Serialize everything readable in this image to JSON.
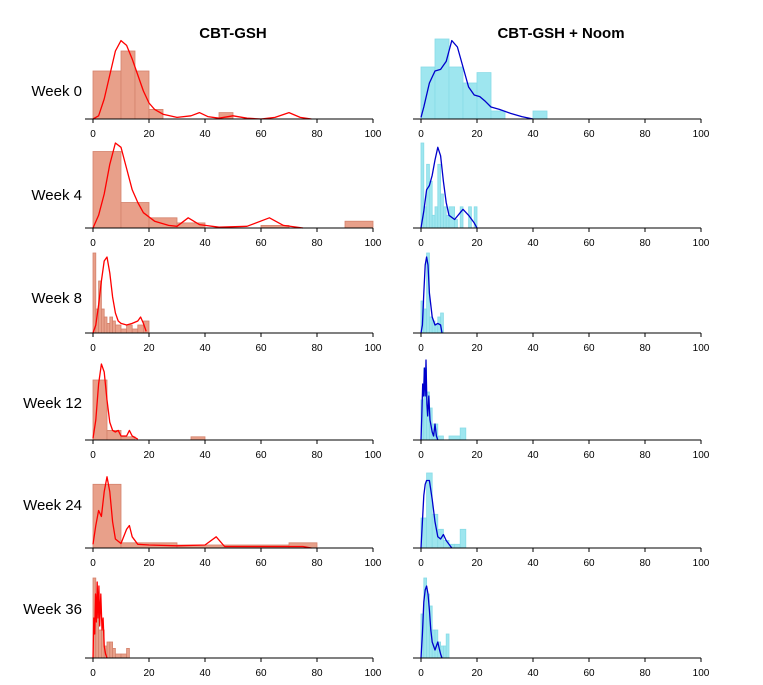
{
  "column_titles": [
    "CBT-GSH",
    "CBT-GSH + Noom"
  ],
  "row_labels": [
    "Week 0",
    "Week 4",
    "Week 8",
    "Week 12",
    "Week 24",
    "Week 36"
  ],
  "colors": {
    "left_bar_fill": "#e8a08a",
    "left_bar_stroke": "#d4826c",
    "left_line": "#ff0000",
    "right_bar_fill": "#9ee6ef",
    "right_bar_stroke": "#88dbe6",
    "right_line": "#0000cc"
  },
  "chart_data": [
    {
      "type": "bar",
      "group": "CBT-GSH",
      "row": "Week 0",
      "xlim": [
        0,
        100
      ],
      "histogram": [
        [
          0,
          10,
          0.6
        ],
        [
          10,
          15,
          0.85
        ],
        [
          15,
          20,
          0.6
        ],
        [
          20,
          25,
          0.12
        ],
        [
          45,
          50,
          0.08
        ]
      ],
      "density": [
        [
          0,
          0.0
        ],
        [
          2,
          0.04
        ],
        [
          4,
          0.25
        ],
        [
          6,
          0.55
        ],
        [
          8,
          0.85
        ],
        [
          10,
          0.98
        ],
        [
          12,
          0.92
        ],
        [
          14,
          0.75
        ],
        [
          16,
          0.55
        ],
        [
          18,
          0.35
        ],
        [
          20,
          0.2
        ],
        [
          22,
          0.12
        ],
        [
          25,
          0.06
        ],
        [
          30,
          0.02
        ],
        [
          35,
          0.04
        ],
        [
          38,
          0.08
        ],
        [
          41,
          0.03
        ],
        [
          45,
          0.01
        ],
        [
          50,
          0.04
        ],
        [
          55,
          0.01
        ],
        [
          60,
          0.0
        ],
        [
          65,
          0.02
        ],
        [
          70,
          0.08
        ],
        [
          74,
          0.02
        ],
        [
          78,
          0.0
        ]
      ]
    },
    {
      "type": "bar",
      "group": "CBT-GSH + Noom",
      "row": "Week 0",
      "xlim": [
        0,
        100
      ],
      "histogram": [
        [
          0,
          5,
          0.65
        ],
        [
          5,
          10,
          1.0
        ],
        [
          10,
          15,
          0.65
        ],
        [
          15,
          20,
          0.45
        ],
        [
          20,
          25,
          0.58
        ],
        [
          25,
          30,
          0.1
        ],
        [
          40,
          45,
          0.1
        ]
      ],
      "density": [
        [
          0,
          0.02
        ],
        [
          1,
          0.15
        ],
        [
          3,
          0.45
        ],
        [
          5,
          0.6
        ],
        [
          7,
          0.62
        ],
        [
          9,
          0.72
        ],
        [
          11,
          0.98
        ],
        [
          13,
          0.9
        ],
        [
          15,
          0.65
        ],
        [
          17,
          0.4
        ],
        [
          19,
          0.3
        ],
        [
          21,
          0.28
        ],
        [
          23,
          0.22
        ],
        [
          25,
          0.15
        ],
        [
          28,
          0.12
        ],
        [
          32,
          0.07
        ],
        [
          36,
          0.03
        ],
        [
          40,
          0.0
        ]
      ]
    },
    {
      "type": "bar",
      "group": "CBT-GSH",
      "row": "Week 4",
      "xlim": [
        0,
        100
      ],
      "histogram": [
        [
          0,
          10,
          0.9
        ],
        [
          10,
          20,
          0.3
        ],
        [
          20,
          30,
          0.12
        ],
        [
          30,
          40,
          0.06
        ],
        [
          60,
          70,
          0.03
        ],
        [
          90,
          100,
          0.08
        ]
      ],
      "density": [
        [
          0,
          0.0
        ],
        [
          2,
          0.15
        ],
        [
          4,
          0.4
        ],
        [
          6,
          0.75
        ],
        [
          8,
          1.0
        ],
        [
          10,
          0.95
        ],
        [
          12,
          0.7
        ],
        [
          14,
          0.45
        ],
        [
          16,
          0.3
        ],
        [
          18,
          0.18
        ],
        [
          22,
          0.08
        ],
        [
          27,
          0.03
        ],
        [
          30,
          0.02
        ],
        [
          34,
          0.12
        ],
        [
          38,
          0.04
        ],
        [
          45,
          0.01
        ],
        [
          55,
          0.02
        ],
        [
          63,
          0.12
        ],
        [
          68,
          0.03
        ],
        [
          75,
          0.0
        ]
      ]
    },
    {
      "type": "bar",
      "group": "CBT-GSH + Noom",
      "row": "Week 4",
      "xlim": [
        0,
        100
      ],
      "histogram": [
        [
          0,
          1,
          1.0
        ],
        [
          1,
          2,
          0.25
        ],
        [
          2,
          3,
          0.75
        ],
        [
          3,
          4,
          0.55
        ],
        [
          4,
          5,
          0.15
        ],
        [
          5,
          6,
          0.25
        ],
        [
          6,
          7,
          0.75
        ],
        [
          7,
          8,
          0.4
        ],
        [
          8,
          9,
          0.25
        ],
        [
          9,
          10,
          0.15
        ],
        [
          10,
          12,
          0.25
        ],
        [
          12,
          13,
          0.1
        ],
        [
          14,
          15,
          0.25
        ],
        [
          17,
          18,
          0.25
        ],
        [
          19,
          20,
          0.25
        ]
      ],
      "density": [
        [
          0,
          0.0
        ],
        [
          1,
          0.2
        ],
        [
          2,
          0.45
        ],
        [
          3,
          0.5
        ],
        [
          4,
          0.62
        ],
        [
          5,
          0.8
        ],
        [
          6,
          0.95
        ],
        [
          7,
          0.85
        ],
        [
          8,
          0.55
        ],
        [
          9,
          0.3
        ],
        [
          10,
          0.15
        ],
        [
          12,
          0.1
        ],
        [
          14,
          0.18
        ],
        [
          15,
          0.22
        ],
        [
          17,
          0.15
        ],
        [
          19,
          0.06
        ],
        [
          20,
          0.0
        ]
      ]
    },
    {
      "type": "bar",
      "group": "CBT-GSH",
      "row": "Week 8",
      "xlim": [
        0,
        100
      ],
      "histogram": [
        [
          0,
          1,
          1.0
        ],
        [
          1,
          2,
          0.3
        ],
        [
          2,
          3,
          0.65
        ],
        [
          3,
          4,
          0.3
        ],
        [
          4,
          5,
          0.2
        ],
        [
          5,
          6,
          0.12
        ],
        [
          6,
          7,
          0.2
        ],
        [
          7,
          8,
          0.15
        ],
        [
          8,
          10,
          0.1
        ],
        [
          10,
          12,
          0.05
        ],
        [
          12,
          14,
          0.1
        ],
        [
          14,
          16,
          0.05
        ],
        [
          16,
          18,
          0.1
        ],
        [
          18,
          20,
          0.15
        ]
      ],
      "density": [
        [
          0,
          0.0
        ],
        [
          1,
          0.1
        ],
        [
          2,
          0.35
        ],
        [
          3,
          0.65
        ],
        [
          4,
          0.9
        ],
        [
          5,
          0.95
        ],
        [
          6,
          0.75
        ],
        [
          7,
          0.45
        ],
        [
          8,
          0.25
        ],
        [
          9,
          0.15
        ],
        [
          10,
          0.12
        ],
        [
          12,
          0.1
        ],
        [
          14,
          0.12
        ],
        [
          16,
          0.15
        ],
        [
          17,
          0.2
        ],
        [
          18,
          0.12
        ],
        [
          19,
          0.02
        ]
      ]
    },
    {
      "type": "bar",
      "group": "CBT-GSH + Noom",
      "row": "Week 8",
      "xlim": [
        0,
        100
      ],
      "histogram": [
        [
          0,
          1,
          0.4
        ],
        [
          1,
          2,
          0.3
        ],
        [
          2,
          3,
          1.0
        ],
        [
          3,
          4,
          0.2
        ],
        [
          4,
          5,
          0.15
        ],
        [
          5,
          6,
          0.1
        ],
        [
          6,
          7,
          0.2
        ],
        [
          7,
          8,
          0.25
        ]
      ],
      "density": [
        [
          0,
          0.0
        ],
        [
          0.5,
          0.1
        ],
        [
          1,
          0.5
        ],
        [
          1.5,
          0.85
        ],
        [
          2,
          0.95
        ],
        [
          2.5,
          0.85
        ],
        [
          3,
          0.5
        ],
        [
          4,
          0.2
        ],
        [
          5,
          0.1
        ],
        [
          6,
          0.12
        ],
        [
          7,
          0.1
        ],
        [
          7.5,
          0.0
        ]
      ]
    },
    {
      "type": "bar",
      "group": "CBT-GSH",
      "row": "Week 12",
      "xlim": [
        0,
        100
      ],
      "histogram": [
        [
          0,
          5,
          0.75
        ],
        [
          5,
          10,
          0.12
        ],
        [
          10,
          15,
          0.04
        ],
        [
          35,
          40,
          0.04
        ]
      ],
      "density": [
        [
          0,
          0.02
        ],
        [
          1,
          0.25
        ],
        [
          2,
          0.7
        ],
        [
          3,
          0.95
        ],
        [
          4,
          0.85
        ],
        [
          5,
          0.5
        ],
        [
          6,
          0.22
        ],
        [
          7,
          0.12
        ],
        [
          8,
          0.1
        ],
        [
          9,
          0.12
        ],
        [
          10,
          0.05
        ],
        [
          12,
          0.05
        ],
        [
          13,
          0.12
        ],
        [
          14,
          0.05
        ],
        [
          16,
          0.01
        ]
      ]
    },
    {
      "type": "bar",
      "group": "CBT-GSH + Noom",
      "row": "Week 12",
      "xlim": [
        0,
        100
      ],
      "histogram": [
        [
          0,
          1,
          0.5
        ],
        [
          1,
          2,
          0.9
        ],
        [
          2,
          3,
          0.6
        ],
        [
          3,
          4,
          0.4
        ],
        [
          4,
          5,
          0.2
        ],
        [
          5,
          6,
          0.2
        ],
        [
          6,
          8,
          0.05
        ],
        [
          10,
          14,
          0.05
        ],
        [
          14,
          16,
          0.15
        ]
      ],
      "density": [
        [
          0,
          0.0
        ],
        [
          0.3,
          0.3
        ],
        [
          0.6,
          0.7
        ],
        [
          0.9,
          0.55
        ],
        [
          1.2,
          0.9
        ],
        [
          1.5,
          0.55
        ],
        [
          1.8,
          1.0
        ],
        [
          2.1,
          0.45
        ],
        [
          2.4,
          0.3
        ],
        [
          2.8,
          0.55
        ],
        [
          3.2,
          0.25
        ],
        [
          4,
          0.1
        ],
        [
          4.5,
          0.05
        ],
        [
          5,
          0.2
        ],
        [
          5.5,
          0.05
        ],
        [
          6,
          0.0
        ]
      ]
    },
    {
      "type": "bar",
      "group": "CBT-GSH",
      "row": "Week 24",
      "xlim": [
        0,
        100
      ],
      "histogram": [
        [
          0,
          10,
          0.85
        ],
        [
          10,
          30,
          0.07
        ],
        [
          30,
          70,
          0.04
        ],
        [
          70,
          80,
          0.07
        ]
      ],
      "density": [
        [
          0,
          0.05
        ],
        [
          1,
          0.3
        ],
        [
          2,
          0.5
        ],
        [
          3,
          0.42
        ],
        [
          4,
          0.75
        ],
        [
          5,
          0.95
        ],
        [
          6,
          0.75
        ],
        [
          7,
          0.35
        ],
        [
          8,
          0.12
        ],
        [
          10,
          0.06
        ],
        [
          12,
          0.25
        ],
        [
          13,
          0.3
        ],
        [
          14,
          0.15
        ],
        [
          16,
          0.05
        ],
        [
          20,
          0.04
        ],
        [
          30,
          0.03
        ],
        [
          40,
          0.04
        ],
        [
          44,
          0.15
        ],
        [
          47,
          0.02
        ],
        [
          55,
          0.02
        ],
        [
          65,
          0.02
        ],
        [
          75,
          0.02
        ],
        [
          78,
          0.0
        ]
      ]
    },
    {
      "type": "bar",
      "group": "CBT-GSH + Noom",
      "row": "Week 24",
      "xlim": [
        0,
        100
      ],
      "histogram": [
        [
          0,
          2,
          0.4
        ],
        [
          2,
          4,
          1.0
        ],
        [
          4,
          6,
          0.45
        ],
        [
          6,
          8,
          0.25
        ],
        [
          8,
          10,
          0.1
        ],
        [
          10,
          12,
          0.05
        ],
        [
          12,
          14,
          0.05
        ],
        [
          14,
          16,
          0.25
        ]
      ],
      "density": [
        [
          0,
          0.0
        ],
        [
          0.5,
          0.35
        ],
        [
          1,
          0.7
        ],
        [
          1.5,
          0.85
        ],
        [
          2,
          0.9
        ],
        [
          3,
          0.9
        ],
        [
          4,
          0.65
        ],
        [
          5,
          0.35
        ],
        [
          6,
          0.15
        ],
        [
          7,
          0.12
        ],
        [
          8,
          0.18
        ],
        [
          9,
          0.1
        ],
        [
          10,
          0.05
        ],
        [
          11,
          0.0
        ]
      ]
    },
    {
      "type": "bar",
      "group": "CBT-GSH",
      "row": "Week 36",
      "xlim": [
        0,
        100
      ],
      "histogram": [
        [
          0,
          1,
          1.0
        ],
        [
          1,
          2,
          0.55
        ],
        [
          2,
          3,
          0.35
        ],
        [
          3,
          4,
          0.35
        ],
        [
          4,
          5,
          0.15
        ],
        [
          5,
          6,
          0.2
        ],
        [
          6,
          7,
          0.2
        ],
        [
          7,
          8,
          0.12
        ],
        [
          8,
          10,
          0.05
        ],
        [
          10,
          12,
          0.05
        ],
        [
          12,
          13,
          0.12
        ]
      ],
      "density": [
        [
          0,
          0.0
        ],
        [
          0.3,
          0.5
        ],
        [
          0.6,
          0.3
        ],
        [
          0.9,
          0.8
        ],
        [
          1.2,
          0.45
        ],
        [
          1.5,
          0.95
        ],
        [
          1.8,
          0.5
        ],
        [
          2.1,
          0.9
        ],
        [
          2.4,
          0.4
        ],
        [
          2.8,
          0.8
        ],
        [
          3.2,
          0.35
        ],
        [
          3.6,
          0.5
        ],
        [
          4,
          0.15
        ],
        [
          4.5,
          0.05
        ],
        [
          5,
          0.0
        ]
      ]
    },
    {
      "type": "bar",
      "group": "CBT-GSH + Noom",
      "row": "Week 36",
      "xlim": [
        0,
        100
      ],
      "histogram": [
        [
          0,
          1,
          0.55
        ],
        [
          1,
          2,
          1.0
        ],
        [
          2,
          3,
          0.8
        ],
        [
          3,
          4,
          0.65
        ],
        [
          4,
          5,
          0.35
        ],
        [
          5,
          6,
          0.35
        ],
        [
          6,
          7,
          0.2
        ],
        [
          7,
          8,
          0.15
        ],
        [
          8,
          9,
          0.15
        ],
        [
          9,
          10,
          0.3
        ]
      ],
      "density": [
        [
          0,
          0.0
        ],
        [
          0.5,
          0.3
        ],
        [
          1,
          0.7
        ],
        [
          1.5,
          0.85
        ],
        [
          2,
          0.9
        ],
        [
          2.5,
          0.8
        ],
        [
          3,
          0.6
        ],
        [
          3.5,
          0.35
        ],
        [
          4,
          0.2
        ],
        [
          5,
          0.1
        ],
        [
          5.5,
          0.15
        ],
        [
          6,
          0.2
        ],
        [
          6.5,
          0.12
        ],
        [
          7,
          0.05
        ],
        [
          7.5,
          0.0
        ]
      ]
    }
  ],
  "x_ticks": [
    "0",
    "20",
    "40",
    "60",
    "80",
    "100"
  ]
}
